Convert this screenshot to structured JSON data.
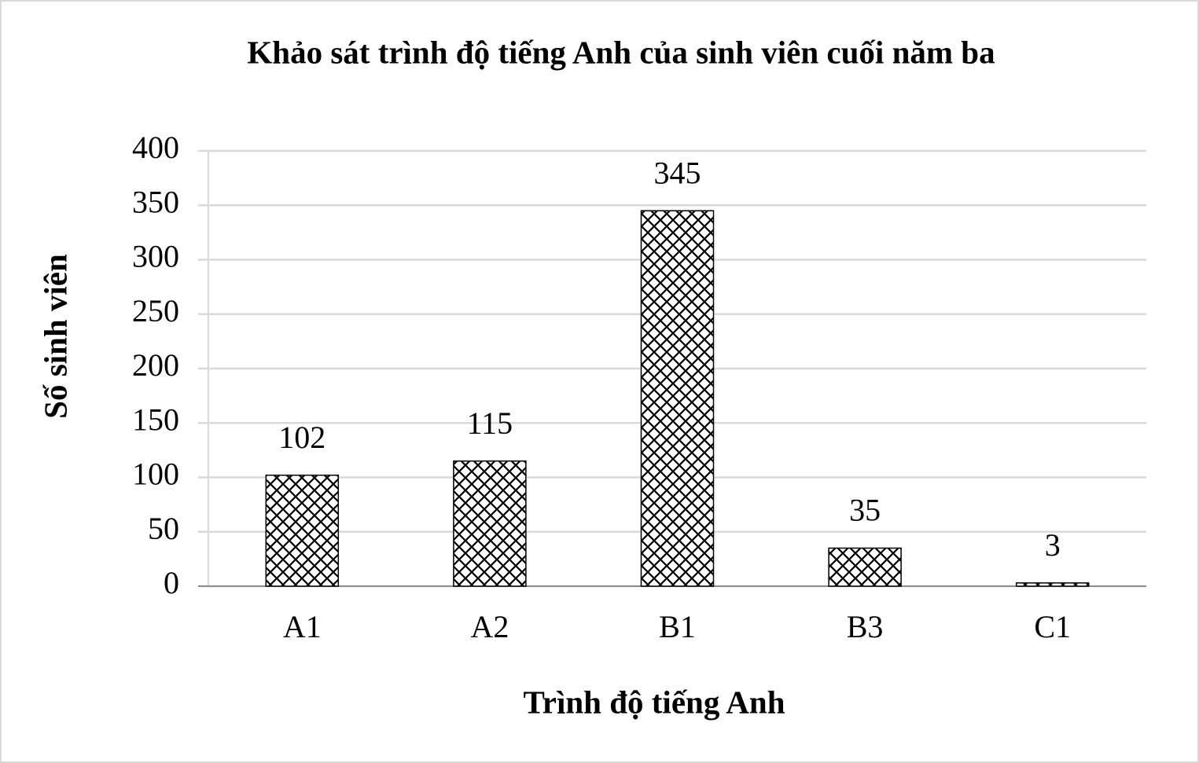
{
  "chart_data": {
    "type": "bar",
    "title": "Khảo sát trình độ tiếng Anh của sinh viên cuối năm ba",
    "x_label": "Trình độ tiếng Anh",
    "y_label": "Số sinh viên",
    "categories": [
      "A1",
      "A2",
      "B1",
      "B3",
      "C1"
    ],
    "values": [
      102,
      115,
      345,
      35,
      3
    ],
    "color": "#000000",
    "ylim": [
      0,
      400
    ],
    "yticks": [
      0,
      50,
      100,
      150,
      200,
      250,
      300,
      350,
      400
    ],
    "grid": true
  }
}
